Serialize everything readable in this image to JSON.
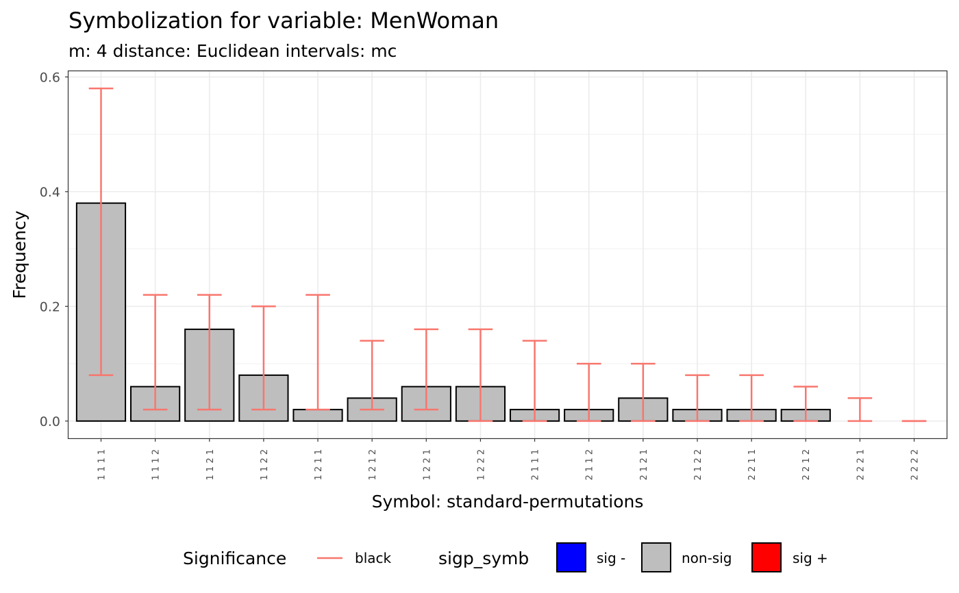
{
  "chart_data": {
    "type": "bar",
    "title": "Symbolization for variable: MenWoman",
    "subtitle": "m: 4  distance:  Euclidean  intervals:  mc",
    "xlabel": "Symbol: standard-permutations",
    "ylabel": "Frequency",
    "ylim": [
      -0.03,
      0.61
    ],
    "yticks": [
      0.0,
      0.2,
      0.4,
      0.6
    ],
    "ytick_labels": [
      "0.0",
      "0.2",
      "0.4",
      "0.6"
    ],
    "grid": true,
    "legend_position": "bottom",
    "categories": [
      "1 1 1 1",
      "1 1 1 2",
      "1 1 2 1",
      "1 1 2 2",
      "1 2 1 1",
      "1 2 1 2",
      "1 2 2 1",
      "1 2 2 2",
      "2 1 1 1",
      "2 1 1 2",
      "2 1 2 1",
      "2 1 2 2",
      "2 2 1 1",
      "2 2 1 2",
      "2 2 2 1",
      "2 2 2 2"
    ],
    "values": [
      0.38,
      0.06,
      0.16,
      0.08,
      0.02,
      0.04,
      0.06,
      0.06,
      0.02,
      0.02,
      0.04,
      0.02,
      0.02,
      0.02,
      0.0,
      0.0
    ],
    "interval_lower": [
      0.08,
      0.02,
      0.02,
      0.02,
      0.02,
      0.02,
      0.02,
      0.0,
      0.0,
      0.0,
      0.0,
      0.0,
      0.0,
      0.0,
      0.0,
      0.0
    ],
    "interval_upper": [
      0.58,
      0.22,
      0.22,
      0.2,
      0.22,
      0.14,
      0.16,
      0.16,
      0.14,
      0.1,
      0.1,
      0.08,
      0.08,
      0.06,
      0.04,
      0.0
    ],
    "significance": [
      "non-sig",
      "non-sig",
      "non-sig",
      "non-sig",
      "non-sig",
      "non-sig",
      "non-sig",
      "non-sig",
      "non-sig",
      "non-sig",
      "non-sig",
      "non-sig",
      "non-sig",
      "non-sig",
      "non-sig",
      "non-sig"
    ],
    "colors": {
      "errorbar": "#F8766D",
      "bar_fill": "#BEBEBE",
      "bar_stroke": "#000000",
      "grid": "#EBEBEB",
      "panel_border": "#333333"
    }
  },
  "legend": {
    "significance_title": "Significance",
    "significance_entry": "black",
    "sigp_title": "sigp_symb",
    "sigp_entries": [
      {
        "label": "sig -",
        "color": "#0000FF"
      },
      {
        "label": "non-sig",
        "color": "#BEBEBE"
      },
      {
        "label": "sig +",
        "color": "#FF0000"
      }
    ]
  }
}
